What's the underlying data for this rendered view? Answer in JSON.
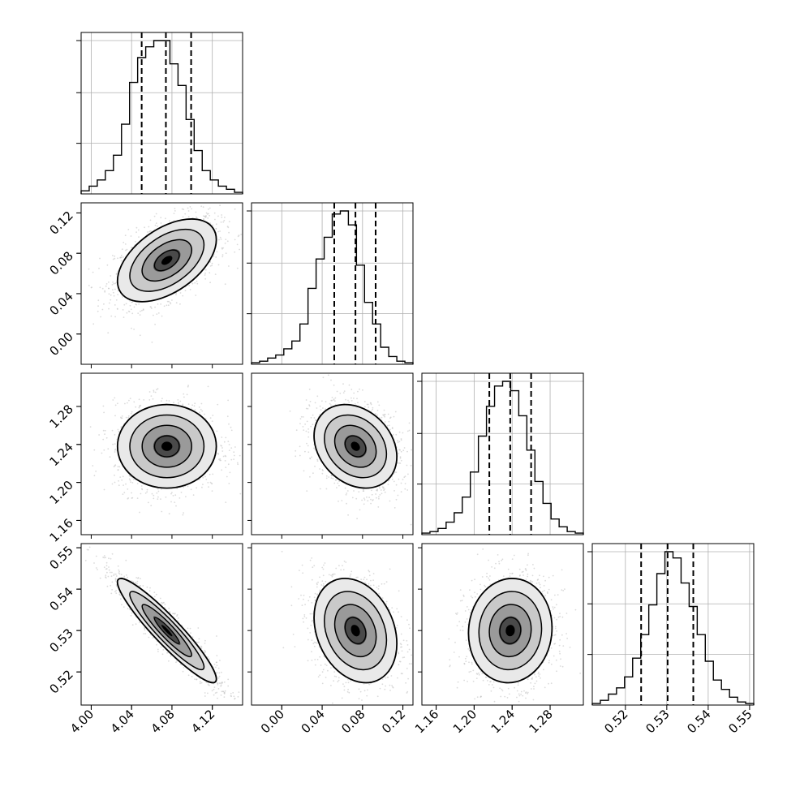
{
  "chart_data": {
    "type": "corner",
    "parameters": 4,
    "histogram_bins": 20,
    "quantile_lines": [
      0.16,
      0.5,
      0.84
    ],
    "grid": true,
    "colors": {
      "hist": "#000000",
      "scatter": "#bdbdbd",
      "density": "#000000",
      "grid": "#b0b0b0"
    },
    "axes": [
      {
        "range": [
          3.99,
          4.15
        ],
        "ticks": [
          4.0,
          4.04,
          4.08,
          4.12
        ],
        "tick_labels": [
          "4.00",
          "4.04",
          "4.08",
          "4.12"
        ],
        "quantiles": [
          4.05,
          4.074,
          4.099
        ]
      },
      {
        "range": [
          -0.03,
          0.13
        ],
        "ticks": [
          0.0,
          0.04,
          0.08,
          0.12
        ],
        "tick_labels": [
          "0.00",
          "0.04",
          "0.08",
          "0.12"
        ],
        "quantiles": [
          0.052,
          0.073,
          0.093
        ]
      },
      {
        "range": [
          1.145,
          1.315
        ],
        "ticks": [
          1.16,
          1.2,
          1.24,
          1.28
        ],
        "tick_labels": [
          "1.16",
          "1.20",
          "1.24",
          "1.28"
        ],
        "quantiles": [
          1.216,
          1.238,
          1.26
        ]
      },
      {
        "range": [
          0.512,
          0.551
        ],
        "ticks": [
          0.52,
          0.53,
          0.54,
          0.55
        ],
        "tick_labels": [
          "0.52",
          "0.53",
          "0.54",
          "0.55"
        ],
        "quantiles": [
          0.5238,
          0.5302,
          0.5364
        ]
      }
    ],
    "histograms": [
      {
        "counts": [
          2,
          5,
          9,
          15,
          25,
          45,
          72,
          88,
          95,
          99,
          99,
          84,
          70,
          48,
          28,
          15,
          9,
          5,
          3,
          1
        ]
      },
      {
        "counts": [
          1,
          2,
          4,
          6,
          10,
          15,
          26,
          49,
          68,
          82,
          97,
          99,
          90,
          64,
          40,
          26,
          11,
          5,
          2,
          1
        ]
      },
      {
        "counts": [
          1,
          2,
          4,
          8,
          14,
          24,
          40,
          63,
          82,
          95,
          98,
          92,
          76,
          54,
          34,
          20,
          10,
          5,
          2,
          1
        ]
      },
      {
        "counts": [
          1,
          3,
          7,
          11,
          18,
          30,
          45,
          64,
          84,
          98,
          94,
          78,
          63,
          45,
          28,
          16,
          10,
          5,
          2,
          1
        ]
      }
    ],
    "pair_panels": [
      {
        "row": 1,
        "col": 0,
        "center": [
          4.075,
          0.073
        ],
        "corr": 0.5
      },
      {
        "row": 2,
        "col": 0,
        "center": [
          4.075,
          1.238
        ],
        "corr": 0.0
      },
      {
        "row": 2,
        "col": 1,
        "center": [
          0.073,
          1.238
        ],
        "corr": -0.25
      },
      {
        "row": 3,
        "col": 0,
        "center": [
          4.075,
          0.53
        ],
        "corr": -0.93
      },
      {
        "row": 3,
        "col": 1,
        "center": [
          0.073,
          0.53
        ],
        "corr": -0.25
      },
      {
        "row": 3,
        "col": 2,
        "center": [
          1.238,
          0.53
        ],
        "corr": 0.05
      }
    ]
  }
}
